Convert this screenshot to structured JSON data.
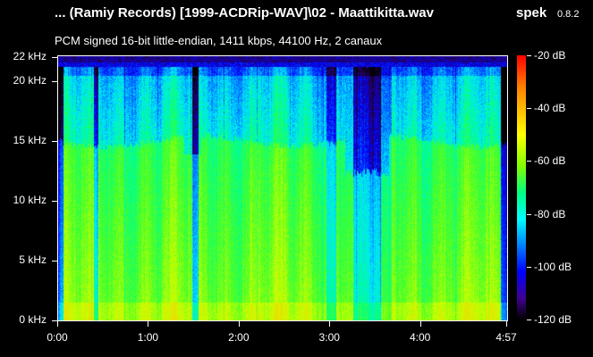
{
  "window": {
    "title": "... (Ramiy Records) [1999-ACDRip-WAV]\\02 - Maattikitta.wav",
    "app_name": "spek",
    "app_version": "0.8.2"
  },
  "file_info": "PCM signed 16-bit little-endian, 1411 kbps, 44100 Hz, 2 canaux",
  "chart_data": {
    "type": "heatmap",
    "x_axis": {
      "ticks": [
        {
          "label": "0:00",
          "seconds": 0
        },
        {
          "label": "1:00",
          "seconds": 60
        },
        {
          "label": "2:00",
          "seconds": 120
        },
        {
          "label": "3:00",
          "seconds": 180
        },
        {
          "label": "4:00",
          "seconds": 240
        },
        {
          "label": "4:57",
          "seconds": 297
        }
      ],
      "range_seconds": [
        0,
        297
      ]
    },
    "y_axis": {
      "ticks": [
        {
          "label": "22 kHz",
          "khz": 22
        },
        {
          "label": "20 kHz",
          "khz": 20
        },
        {
          "label": "15 kHz",
          "khz": 15
        },
        {
          "label": "10 kHz",
          "khz": 10
        },
        {
          "label": "5 kHz",
          "khz": 5
        },
        {
          "label": "0 kHz",
          "khz": 0
        }
      ],
      "range_khz": [
        0,
        22.05
      ]
    },
    "colorbar": {
      "ticks": [
        {
          "label": "-20 dB",
          "db": -20
        },
        {
          "label": "-40 dB",
          "db": -40
        },
        {
          "label": "-60 dB",
          "db": -60
        },
        {
          "label": "-80 dB",
          "db": -80
        },
        {
          "label": "-100 dB",
          "db": -100
        },
        {
          "label": "-120 dB",
          "db": -120
        }
      ],
      "range_db": [
        -120,
        -20
      ]
    }
  }
}
